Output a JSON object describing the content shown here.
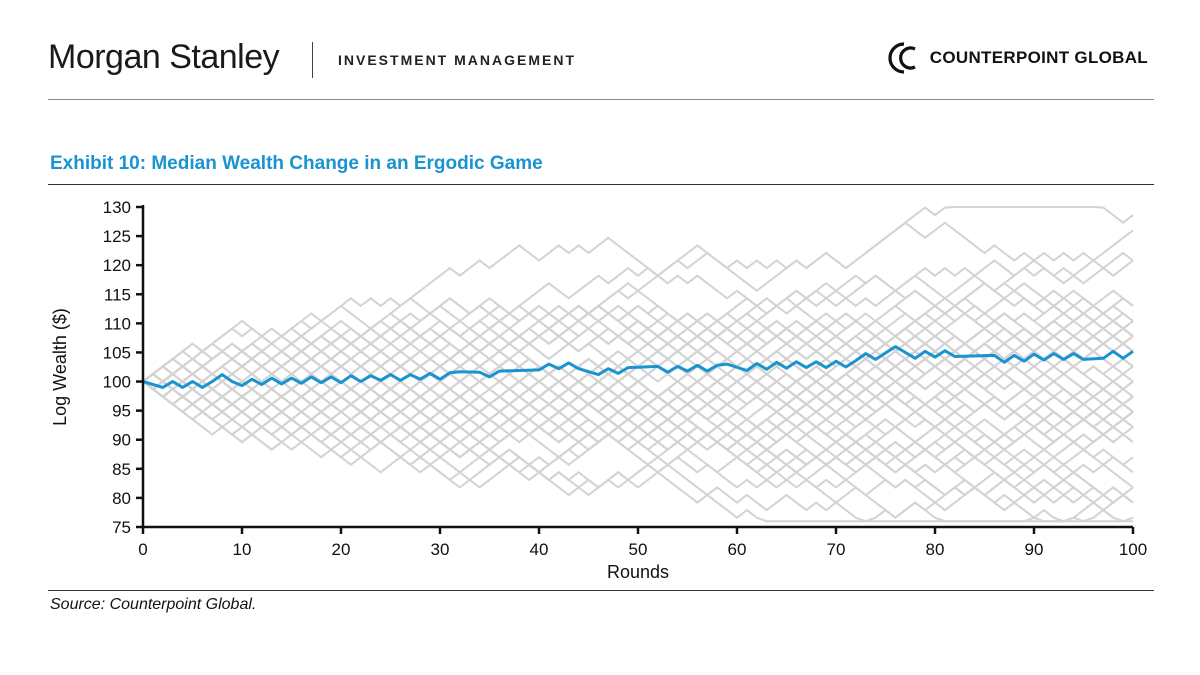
{
  "header": {
    "brand": "Morgan Stanley",
    "division": "INVESTMENT MANAGEMENT",
    "partner": "COUNTERPOINT GLOBAL",
    "partner_logo_icon": "counterpoint-c-logo-icon"
  },
  "exhibit_title": "Exhibit 10: Median Wealth Change in an Ergodic Game",
  "source": "Source: Counterpoint Global.",
  "chart_data": {
    "type": "line",
    "title": "Exhibit 10: Median Wealth Change in an Ergodic Game",
    "xlabel": "Rounds",
    "ylabel": "Log Wealth ($)",
    "xlim": [
      0,
      100
    ],
    "ylim": [
      75,
      130
    ],
    "xticks": [
      0,
      10,
      20,
      30,
      40,
      50,
      60,
      70,
      80,
      90,
      100
    ],
    "yticks": [
      75,
      80,
      85,
      90,
      95,
      100,
      105,
      110,
      115,
      120,
      125,
      130
    ],
    "grid": false,
    "legend": "none",
    "step": 1.3,
    "background_paths": {
      "count": 60,
      "color": "#d3d3d3",
      "note_start": 100
    },
    "median_color": "#1a93d1",
    "median_series": {
      "x": [
        0,
        2,
        3,
        4,
        5,
        6,
        7,
        8,
        9,
        10,
        11,
        12,
        13,
        14,
        15,
        16,
        17,
        18,
        19,
        20,
        21,
        22,
        23,
        24,
        25,
        26,
        27,
        28,
        29,
        30,
        31,
        32,
        34,
        35,
        36,
        40,
        41,
        42,
        43,
        44,
        46,
        47,
        48,
        49,
        52,
        53,
        54,
        55,
        56,
        57,
        58,
        59,
        61,
        62,
        63,
        64,
        65,
        66,
        67,
        68,
        69,
        70,
        71,
        72,
        73,
        74,
        76,
        78,
        79,
        80,
        81,
        82,
        86,
        87,
        88,
        89,
        90,
        91,
        92,
        93,
        94,
        95,
        97,
        98,
        99,
        100
      ],
      "y": [
        100,
        99,
        100,
        99,
        100,
        99,
        100,
        101.2,
        100,
        99.3,
        100.4,
        99.5,
        100.6,
        99.6,
        100.6,
        99.7,
        100.8,
        99.8,
        100.8,
        99.8,
        101,
        100,
        101,
        100.2,
        101.2,
        100.2,
        101.2,
        100.4,
        101.4,
        100.4,
        101.5,
        101.7,
        101.6,
        100.8,
        101.8,
        102,
        103,
        102.2,
        103.2,
        102.2,
        101.2,
        102.2,
        101.4,
        102.4,
        102.6,
        101.6,
        102.6,
        101.8,
        102.8,
        101.8,
        102.8,
        103,
        101.9,
        103.1,
        102.1,
        103.3,
        102.3,
        103.4,
        102.4,
        103.4,
        102.4,
        103.5,
        102.5,
        103.6,
        104.8,
        103.8,
        106,
        104,
        105.2,
        104.2,
        105.3,
        104.3,
        104.5,
        103.3,
        104.5,
        103.5,
        104.7,
        103.7,
        104.8,
        103.8,
        104.8,
        103.8,
        104,
        105.2,
        104,
        105.2
      ]
    }
  }
}
